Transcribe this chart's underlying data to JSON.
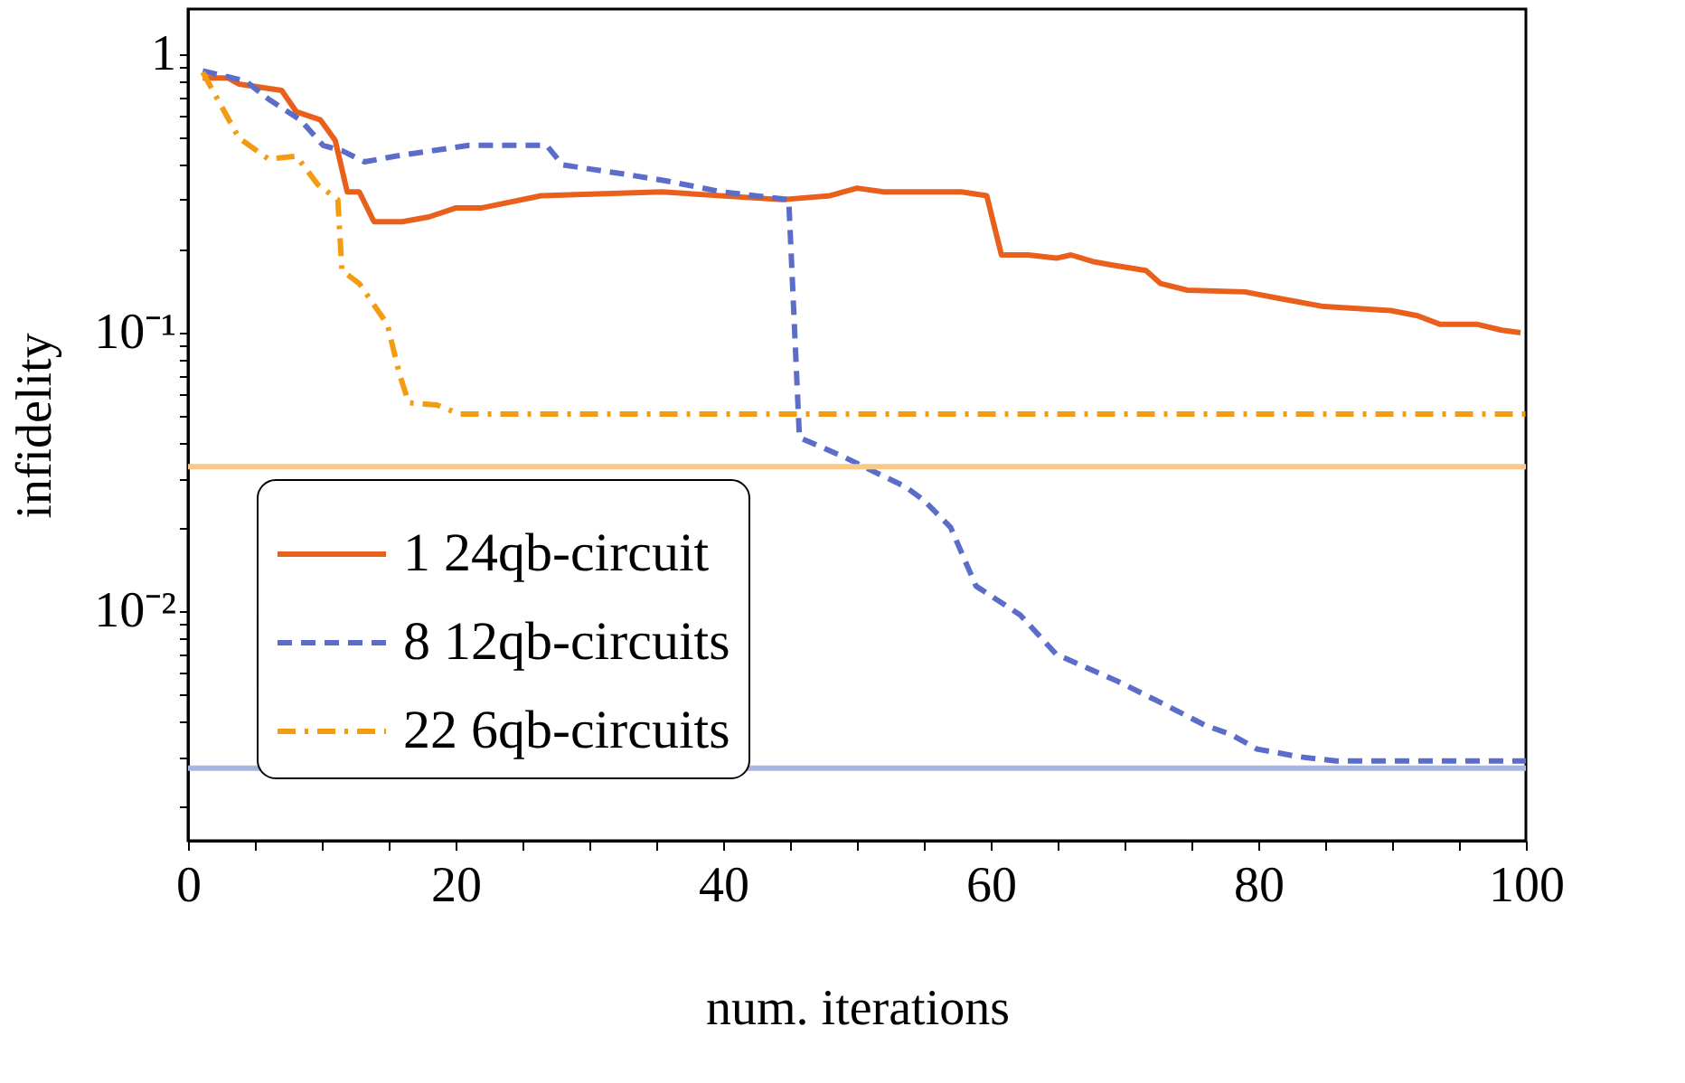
{
  "chart_data": {
    "type": "line",
    "xlabel": "num. iterations",
    "ylabel": "infidelity",
    "log": "y",
    "grid": false,
    "legend": "bottom left",
    "xlim": [
      0,
      100
    ],
    "xticks": [
      0,
      {
        "value": 5,
        "label": null
      },
      {
        "value": 10,
        "label": null
      },
      {
        "value": 15,
        "label": null
      },
      20,
      {
        "value": 25,
        "label": null
      },
      {
        "value": 30,
        "label": null
      },
      {
        "value": 35,
        "label": null
      },
      40,
      {
        "value": 45,
        "label": null
      },
      {
        "value": 50,
        "label": null
      },
      {
        "value": 55,
        "label": null
      },
      60,
      {
        "value": 65,
        "label": null
      },
      {
        "value": 70,
        "label": null
      },
      {
        "value": 75,
        "label": null
      },
      80,
      {
        "value": 85,
        "label": null
      },
      {
        "value": 90,
        "label": null
      },
      {
        "value": 95,
        "label": null
      },
      100
    ],
    "ylim": [
      0.0015,
      1.45
    ],
    "yticks": [
      {
        "value": 0.002,
        "label": null
      },
      {
        "value": 0.003,
        "label": null
      },
      {
        "value": 0.004,
        "label": null
      },
      {
        "value": 0.005,
        "label": null
      },
      {
        "value": 0.006,
        "label": null
      },
      {
        "value": 0.007,
        "label": null
      },
      {
        "value": 0.008,
        "label": null
      },
      {
        "value": 0.009,
        "label": null
      },
      {
        "value": 0.01,
        "label": "10⁻²"
      },
      {
        "value": 0.02,
        "label": null
      },
      {
        "value": 0.03,
        "label": null
      },
      {
        "value": 0.04,
        "label": null
      },
      {
        "value": 0.05,
        "label": null
      },
      {
        "value": 0.06,
        "label": null
      },
      {
        "value": 0.07,
        "label": null
      },
      {
        "value": 0.08,
        "label": null
      },
      {
        "value": 0.09,
        "label": null
      },
      {
        "value": 0.1,
        "label": "10⁻¹"
      },
      {
        "value": 0.2,
        "label": null
      },
      {
        "value": 0.3,
        "label": null
      },
      {
        "value": 0.4,
        "label": null
      },
      {
        "value": 0.5,
        "label": null
      },
      {
        "value": 0.6,
        "label": null
      },
      {
        "value": 0.7,
        "label": null
      },
      {
        "value": 0.8,
        "label": null
      },
      {
        "value": 0.9,
        "label": null
      },
      1
    ],
    "series": [
      {
        "name": "1 24qb-circuit",
        "color": "#e8601c",
        "line_style": "solid",
        "x": [
          1.1,
          3,
          3.8,
          7,
          8.1,
          9.9,
          11,
          11.9,
          12.8,
          13.9,
          16,
          18,
          20,
          21.9,
          26.4,
          35.4,
          44.4,
          48,
          50,
          52,
          57.8,
          59.7,
          60.8,
          62.8,
          64.9,
          66,
          67.6,
          69,
          71.6,
          72.7,
          74.7,
          79,
          81.8,
          84.9,
          89.9,
          91.9,
          93.6,
          96.4,
          98.2,
          99.6
        ],
        "values": [
          0.82,
          0.82,
          0.78,
          0.74,
          0.62,
          0.58,
          0.49,
          0.32,
          0.32,
          0.25,
          0.25,
          0.26,
          0.28,
          0.28,
          0.31,
          0.32,
          0.3,
          0.31,
          0.33,
          0.32,
          0.32,
          0.31,
          0.19,
          0.19,
          0.185,
          0.19,
          0.18,
          0.175,
          0.167,
          0.15,
          0.142,
          0.14,
          0.132,
          0.124,
          0.12,
          0.115,
          0.107,
          0.107,
          0.102,
          0.1
        ]
      },
      {
        "name": "8 12qb-circuits",
        "color": "#5b6dc8",
        "line_style": "dashed",
        "x": [
          1.1,
          4.3,
          6,
          8.4,
          10.1,
          11.5,
          13.2,
          15.5,
          21,
          26.8,
          28,
          32.7,
          35.8,
          39.9,
          44.9,
          45.7,
          48.9,
          53.6,
          55,
          57,
          58.9,
          62.2,
          64.9,
          69.5,
          72.7,
          76,
          78,
          79.9,
          83.1,
          85.8,
          100
        ],
        "values": [
          0.87,
          0.8,
          0.69,
          0.58,
          0.47,
          0.45,
          0.41,
          0.43,
          0.47,
          0.47,
          0.4,
          0.37,
          0.35,
          0.32,
          0.3,
          0.042,
          0.036,
          0.028,
          0.025,
          0.02,
          0.0123,
          0.0097,
          0.007,
          0.0056,
          0.0047,
          0.0039,
          0.0036,
          0.0032,
          0.003,
          0.0029,
          0.0029
        ]
      },
      {
        "name": "22 6qb-circuits",
        "color": "#f39c12",
        "line_style": "dashdot",
        "x": [
          1.1,
          3.8,
          6,
          8.1,
          9.7,
          11.2,
          11.5,
          12.8,
          14.9,
          15.8,
          16.5,
          18.6,
          20.3,
          100
        ],
        "values": [
          0.86,
          0.5,
          0.42,
          0.43,
          0.34,
          0.3,
          0.167,
          0.15,
          0.107,
          0.071,
          0.056,
          0.055,
          0.051,
          0.051
        ]
      }
    ],
    "ref_lines": [
      {
        "axis": "y",
        "value": 0.033,
        "color": "#f9c98a"
      },
      {
        "axis": "y",
        "value": 0.00273,
        "color": "#aab4e0"
      }
    ]
  }
}
